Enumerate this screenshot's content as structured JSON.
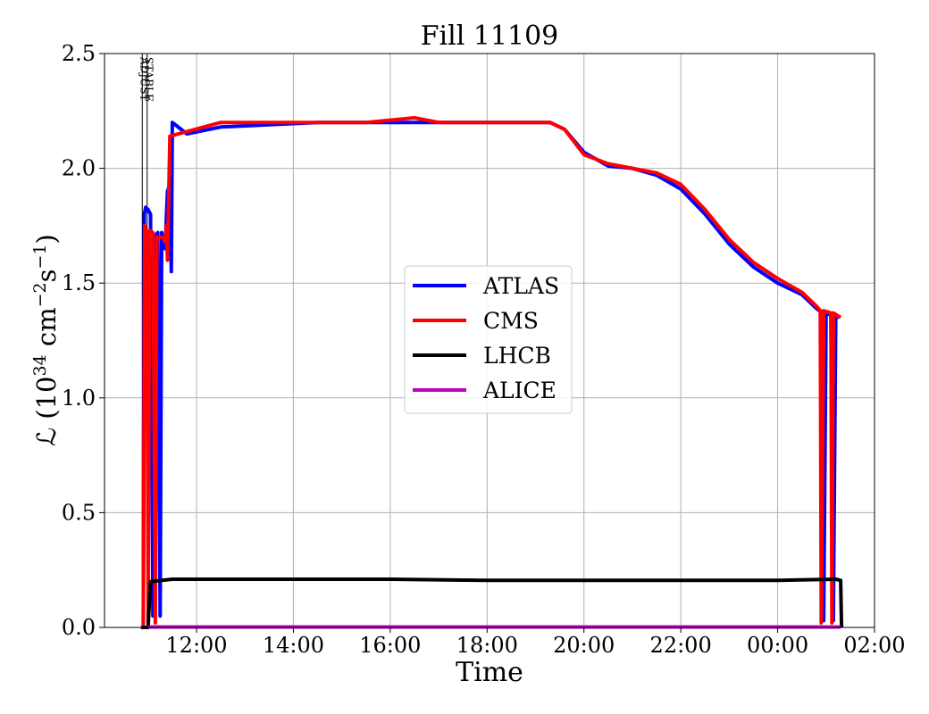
{
  "chart_data": {
    "type": "line",
    "title": "Fill 11109",
    "xlabel": "Time",
    "ylabel_main": "ℒ (10",
    "ylabel_exp1": "34",
    "ylabel_mid": " cm",
    "ylabel_exp2": "−2",
    "ylabel_mid2": "s",
    "ylabel_exp3": "−1",
    "ylabel_end": ")",
    "ylim": [
      0,
      2.5
    ],
    "x_range_hours": [
      10.1,
      26.0
    ],
    "x_ticks": [
      {
        "h": 12,
        "label": "12:00"
      },
      {
        "h": 14,
        "label": "14:00"
      },
      {
        "h": 16,
        "label": "16:00"
      },
      {
        "h": 18,
        "label": "18:00"
      },
      {
        "h": 20,
        "label": "20:00"
      },
      {
        "h": 22,
        "label": "22:00"
      },
      {
        "h": 24,
        "label": "00:00"
      },
      {
        "h": 26,
        "label": "02:00"
      }
    ],
    "y_ticks": [
      {
        "v": 0.0,
        "label": "0.0"
      },
      {
        "v": 0.5,
        "label": "0.5"
      },
      {
        "v": 1.0,
        "label": "1.0"
      },
      {
        "v": 1.5,
        "label": "1.5"
      },
      {
        "v": 2.0,
        "label": "2.0"
      },
      {
        "v": 2.5,
        "label": "2.5"
      }
    ],
    "grid": true,
    "legend_position": "center",
    "markers": [
      {
        "label": "ADJUST",
        "h": 10.88
      },
      {
        "label": "STABLE",
        "h": 10.98
      }
    ],
    "series": [
      {
        "name": "ATLAS",
        "color": "#0000ff",
        "points": [
          [
            10.85,
            0.0
          ],
          [
            10.9,
            0.0
          ],
          [
            10.92,
            1.8
          ],
          [
            10.95,
            1.83
          ],
          [
            11.0,
            1.82
          ],
          [
            11.05,
            1.8
          ],
          [
            11.1,
            0.05
          ],
          [
            11.12,
            1.7
          ],
          [
            11.2,
            1.72
          ],
          [
            11.25,
            0.05
          ],
          [
            11.28,
            1.72
          ],
          [
            11.35,
            1.65
          ],
          [
            11.4,
            1.9
          ],
          [
            11.45,
            1.93
          ],
          [
            11.48,
            1.55
          ],
          [
            11.5,
            2.2
          ],
          [
            11.8,
            2.15
          ],
          [
            12.5,
            2.18
          ],
          [
            13.5,
            2.19
          ],
          [
            14.5,
            2.2
          ],
          [
            15.5,
            2.2
          ],
          [
            16.5,
            2.2
          ],
          [
            17.5,
            2.2
          ],
          [
            18.5,
            2.2
          ],
          [
            19.3,
            2.2
          ],
          [
            19.6,
            2.17
          ],
          [
            20.0,
            2.07
          ],
          [
            20.5,
            2.01
          ],
          [
            21.0,
            2.0
          ],
          [
            21.5,
            1.97
          ],
          [
            22.0,
            1.91
          ],
          [
            22.5,
            1.8
          ],
          [
            23.0,
            1.67
          ],
          [
            23.5,
            1.57
          ],
          [
            24.0,
            1.5
          ],
          [
            24.5,
            1.45
          ],
          [
            24.8,
            1.39
          ],
          [
            24.92,
            1.37
          ],
          [
            24.95,
            0.03
          ],
          [
            25.0,
            1.37
          ],
          [
            25.1,
            1.36
          ],
          [
            25.15,
            0.03
          ],
          [
            25.2,
            1.35
          ],
          [
            25.25,
            1.35
          ]
        ]
      },
      {
        "name": "CMS",
        "color": "#ff0000",
        "points": [
          [
            10.9,
            0.0
          ],
          [
            10.93,
            1.75
          ],
          [
            10.98,
            1.7
          ],
          [
            11.0,
            0.02
          ],
          [
            11.03,
            1.73
          ],
          [
            11.1,
            1.72
          ],
          [
            11.15,
            0.02
          ],
          [
            11.18,
            1.7
          ],
          [
            11.3,
            1.7
          ],
          [
            11.35,
            1.68
          ],
          [
            11.38,
            1.75
          ],
          [
            11.4,
            1.6
          ],
          [
            11.45,
            2.14
          ],
          [
            11.8,
            2.16
          ],
          [
            12.5,
            2.2
          ],
          [
            13.5,
            2.2
          ],
          [
            14.5,
            2.2
          ],
          [
            15.5,
            2.2
          ],
          [
            16.5,
            2.22
          ],
          [
            17.0,
            2.2
          ],
          [
            17.5,
            2.2
          ],
          [
            18.5,
            2.2
          ],
          [
            19.3,
            2.2
          ],
          [
            19.6,
            2.17
          ],
          [
            20.0,
            2.06
          ],
          [
            20.5,
            2.02
          ],
          [
            21.0,
            2.0
          ],
          [
            21.5,
            1.98
          ],
          [
            22.0,
            1.93
          ],
          [
            22.5,
            1.82
          ],
          [
            23.0,
            1.69
          ],
          [
            23.5,
            1.59
          ],
          [
            24.0,
            1.52
          ],
          [
            24.5,
            1.46
          ],
          [
            24.8,
            1.4
          ],
          [
            24.88,
            1.38
          ],
          [
            24.9,
            0.02
          ],
          [
            24.95,
            1.38
          ],
          [
            25.1,
            1.37
          ],
          [
            25.12,
            0.02
          ],
          [
            25.15,
            1.37
          ],
          [
            25.3,
            1.35
          ]
        ]
      },
      {
        "name": "LHCB",
        "color": "#000000",
        "points": [
          [
            10.88,
            0.0
          ],
          [
            11.0,
            0.0
          ],
          [
            11.05,
            0.2
          ],
          [
            11.5,
            0.21
          ],
          [
            12.5,
            0.21
          ],
          [
            14.0,
            0.21
          ],
          [
            16.0,
            0.21
          ],
          [
            18.0,
            0.205
          ],
          [
            20.0,
            0.205
          ],
          [
            22.0,
            0.205
          ],
          [
            24.0,
            0.205
          ],
          [
            25.2,
            0.21
          ],
          [
            25.3,
            0.205
          ],
          [
            25.32,
            0.0
          ]
        ]
      },
      {
        "name": "ALICE",
        "color": "#bf00bf",
        "points": [
          [
            11.0,
            0.002
          ],
          [
            25.3,
            0.002
          ]
        ]
      }
    ]
  }
}
